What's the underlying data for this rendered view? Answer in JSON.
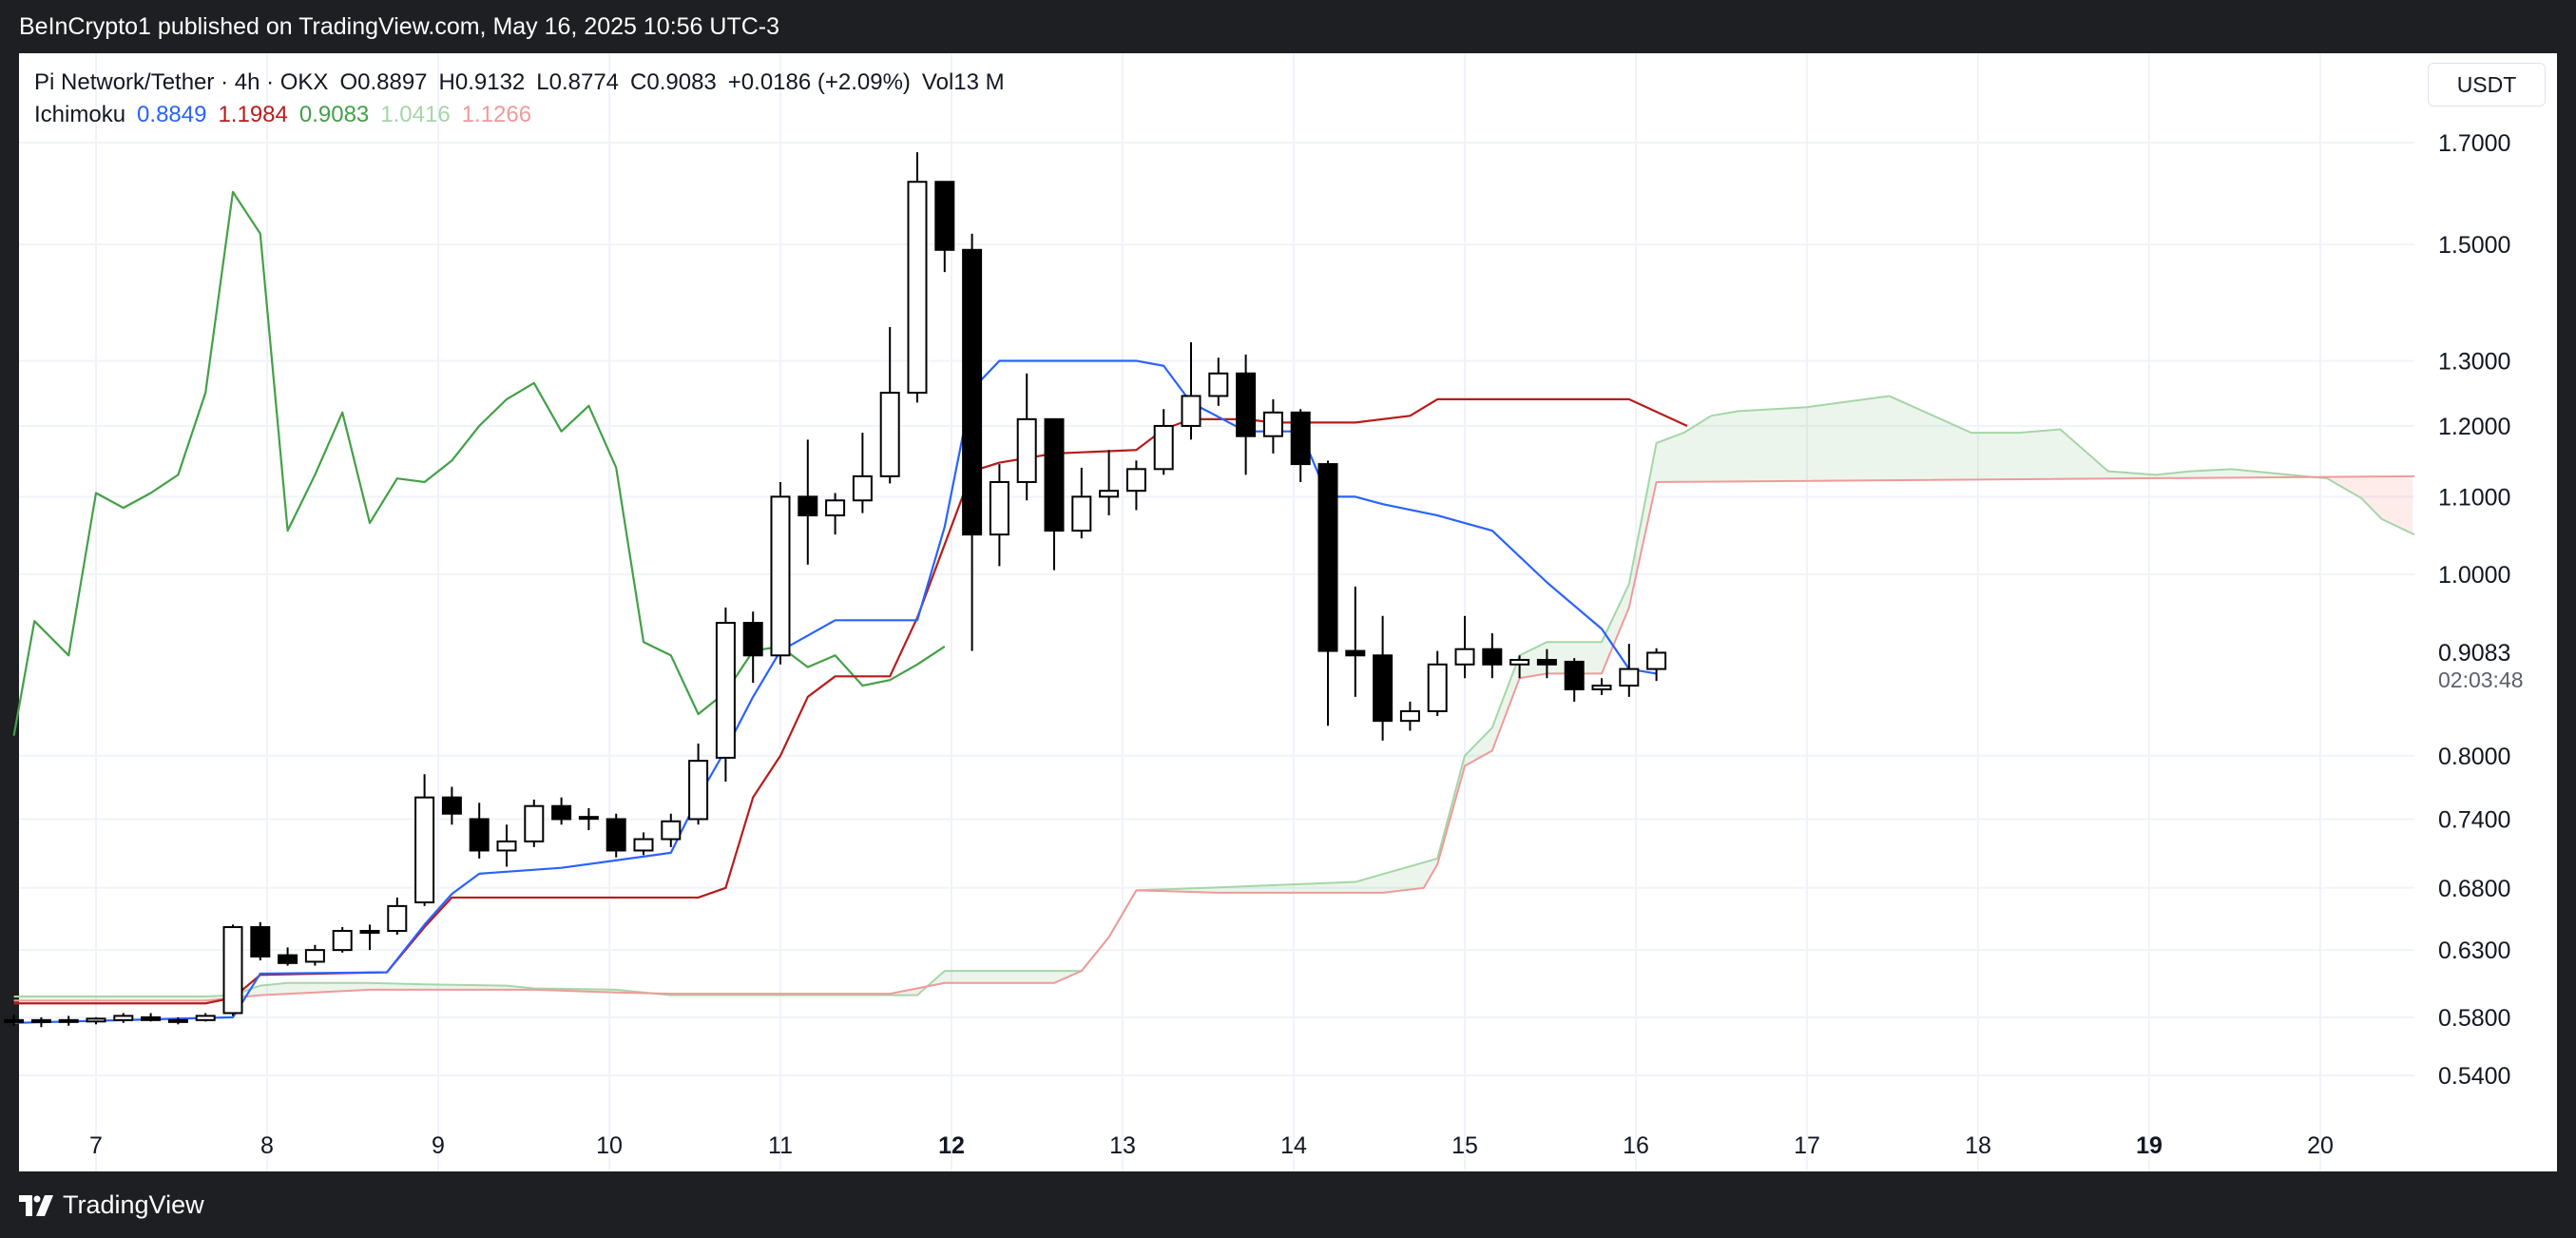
{
  "header": {
    "published": "BeInCrypto1 published on TradingView.com, May 16, 2025 10:56 UTC-3"
  },
  "legend": {
    "symbol": "Pi Network/Tether · 4h · OKX",
    "o_label": "O",
    "o": "0.8897",
    "h_label": "H",
    "h": "0.9132",
    "l_label": "L",
    "l": "0.8774",
    "c_label": "C",
    "c": "0.9083",
    "change": "+0.0186 (+2.09%)",
    "vol_label": "Vol",
    "vol": "13 M",
    "indicator": "Ichimoku",
    "ich_values": [
      "0.8849",
      "1.1984",
      "0.9083",
      "1.0416",
      "1.1266"
    ]
  },
  "currency": "USDT",
  "footer": {
    "brand": "TradingView"
  },
  "colors": {
    "conversion": "#2962ff",
    "base": "#b71c1c",
    "lagging": "#43a047",
    "span_a": "#a5d6a7",
    "span_b": "#ef9a9a",
    "cloud_bull": "rgba(67,160,71,0.10)",
    "cloud_bear": "rgba(244,67,54,0.10)",
    "candle_up": "#ffffff",
    "candle_down": "#000000"
  },
  "chart_data": {
    "type": "candlestick",
    "y_scale": "log",
    "ylim": [
      0.5,
      1.8
    ],
    "y_ticks": [
      "1.7000",
      "1.5000",
      "1.3000",
      "1.2000",
      "1.1000",
      "1.0000",
      "0.8000",
      "0.7400",
      "0.6800",
      "0.6300",
      "0.5800",
      "0.5400"
    ],
    "last_price": "0.9083",
    "countdown": "02:03:48",
    "x_start": 6.55,
    "x_end": 20.55,
    "x_ticks": [
      {
        "v": 7,
        "label": "7",
        "bold": false
      },
      {
        "v": 8,
        "label": "8",
        "bold": false
      },
      {
        "v": 9,
        "label": "9",
        "bold": false
      },
      {
        "v": 10,
        "label": "10",
        "bold": false
      },
      {
        "v": 11,
        "label": "11",
        "bold": false
      },
      {
        "v": 12,
        "label": "12",
        "bold": true
      },
      {
        "v": 13,
        "label": "13",
        "bold": false
      },
      {
        "v": 14,
        "label": "14",
        "bold": false
      },
      {
        "v": 15,
        "label": "15",
        "bold": false
      },
      {
        "v": 16,
        "label": "16",
        "bold": false
      },
      {
        "v": 17,
        "label": "17",
        "bold": false
      },
      {
        "v": 18,
        "label": "18",
        "bold": false
      },
      {
        "v": 19,
        "label": "19",
        "bold": true
      },
      {
        "v": 20,
        "label": "20",
        "bold": false
      }
    ],
    "candles": [
      {
        "t": 6.52,
        "o": 0.578,
        "h": 0.582,
        "l": 0.574,
        "c": 0.577
      },
      {
        "t": 6.68,
        "o": 0.577,
        "h": 0.58,
        "l": 0.573,
        "c": 0.578
      },
      {
        "t": 6.84,
        "o": 0.578,
        "h": 0.581,
        "l": 0.574,
        "c": 0.577
      },
      {
        "t": 7.0,
        "o": 0.577,
        "h": 0.58,
        "l": 0.575,
        "c": 0.579
      },
      {
        "t": 7.16,
        "o": 0.578,
        "h": 0.583,
        "l": 0.576,
        "c": 0.581
      },
      {
        "t": 7.32,
        "o": 0.58,
        "h": 0.583,
        "l": 0.577,
        "c": 0.578
      },
      {
        "t": 7.48,
        "o": 0.578,
        "h": 0.58,
        "l": 0.575,
        "c": 0.577
      },
      {
        "t": 7.64,
        "o": 0.578,
        "h": 0.583,
        "l": 0.577,
        "c": 0.581
      },
      {
        "t": 7.8,
        "o": 0.583,
        "h": 0.65,
        "l": 0.581,
        "c": 0.648
      },
      {
        "t": 7.96,
        "o": 0.648,
        "h": 0.652,
        "l": 0.622,
        "c": 0.625
      },
      {
        "t": 8.12,
        "o": 0.626,
        "h": 0.632,
        "l": 0.618,
        "c": 0.62
      },
      {
        "t": 8.28,
        "o": 0.621,
        "h": 0.634,
        "l": 0.618,
        "c": 0.63
      },
      {
        "t": 8.44,
        "o": 0.63,
        "h": 0.648,
        "l": 0.628,
        "c": 0.645
      },
      {
        "t": 8.6,
        "o": 0.645,
        "h": 0.65,
        "l": 0.63,
        "c": 0.645
      },
      {
        "t": 8.76,
        "o": 0.645,
        "h": 0.672,
        "l": 0.642,
        "c": 0.665
      },
      {
        "t": 8.92,
        "o": 0.668,
        "h": 0.782,
        "l": 0.665,
        "c": 0.76
      },
      {
        "t": 9.08,
        "o": 0.76,
        "h": 0.77,
        "l": 0.735,
        "c": 0.745
      },
      {
        "t": 9.24,
        "o": 0.74,
        "h": 0.755,
        "l": 0.705,
        "c": 0.712
      },
      {
        "t": 9.4,
        "o": 0.712,
        "h": 0.735,
        "l": 0.698,
        "c": 0.72
      },
      {
        "t": 9.56,
        "o": 0.72,
        "h": 0.758,
        "l": 0.715,
        "c": 0.752
      },
      {
        "t": 9.72,
        "o": 0.752,
        "h": 0.76,
        "l": 0.735,
        "c": 0.74
      },
      {
        "t": 9.88,
        "o": 0.742,
        "h": 0.75,
        "l": 0.73,
        "c": 0.742
      },
      {
        "t": 10.04,
        "o": 0.74,
        "h": 0.745,
        "l": 0.706,
        "c": 0.712
      },
      {
        "t": 10.2,
        "o": 0.712,
        "h": 0.728,
        "l": 0.708,
        "c": 0.722
      },
      {
        "t": 10.36,
        "o": 0.722,
        "h": 0.745,
        "l": 0.715,
        "c": 0.738
      },
      {
        "t": 10.52,
        "o": 0.74,
        "h": 0.812,
        "l": 0.735,
        "c": 0.795
      },
      {
        "t": 10.68,
        "o": 0.798,
        "h": 0.96,
        "l": 0.775,
        "c": 0.942
      },
      {
        "t": 10.84,
        "o": 0.942,
        "h": 0.955,
        "l": 0.875,
        "c": 0.905
      },
      {
        "t": 11.0,
        "o": 0.905,
        "h": 1.12,
        "l": 0.895,
        "c": 1.1
      },
      {
        "t": 11.16,
        "o": 1.1,
        "h": 1.18,
        "l": 1.012,
        "c": 1.075
      },
      {
        "t": 11.32,
        "o": 1.075,
        "h": 1.105,
        "l": 1.05,
        "c": 1.095
      },
      {
        "t": 11.48,
        "o": 1.095,
        "h": 1.19,
        "l": 1.078,
        "c": 1.128
      },
      {
        "t": 11.64,
        "o": 1.128,
        "h": 1.355,
        "l": 1.118,
        "c": 1.25
      },
      {
        "t": 11.8,
        "o": 1.25,
        "h": 1.68,
        "l": 1.235,
        "c": 1.62
      },
      {
        "t": 11.96,
        "o": 1.62,
        "h": 1.62,
        "l": 1.45,
        "c": 1.49
      },
      {
        "t": 12.12,
        "o": 1.49,
        "h": 1.52,
        "l": 0.91,
        "c": 1.05
      },
      {
        "t": 12.28,
        "o": 1.05,
        "h": 1.145,
        "l": 1.01,
        "c": 1.12
      },
      {
        "t": 12.44,
        "o": 1.12,
        "h": 1.28,
        "l": 1.095,
        "c": 1.21
      },
      {
        "t": 12.6,
        "o": 1.21,
        "h": 1.21,
        "l": 1.005,
        "c": 1.055
      },
      {
        "t": 12.76,
        "o": 1.055,
        "h": 1.14,
        "l": 1.045,
        "c": 1.1
      },
      {
        "t": 12.92,
        "o": 1.1,
        "h": 1.165,
        "l": 1.075,
        "c": 1.108
      },
      {
        "t": 13.08,
        "o": 1.108,
        "h": 1.15,
        "l": 1.082,
        "c": 1.138
      },
      {
        "t": 13.24,
        "o": 1.138,
        "h": 1.225,
        "l": 1.13,
        "c": 1.2
      },
      {
        "t": 13.4,
        "o": 1.2,
        "h": 1.33,
        "l": 1.18,
        "c": 1.245
      },
      {
        "t": 13.56,
        "o": 1.245,
        "h": 1.305,
        "l": 1.23,
        "c": 1.28
      },
      {
        "t": 13.72,
        "o": 1.28,
        "h": 1.31,
        "l": 1.13,
        "c": 1.185
      },
      {
        "t": 13.88,
        "o": 1.185,
        "h": 1.24,
        "l": 1.16,
        "c": 1.22
      },
      {
        "t": 14.04,
        "o": 1.22,
        "h": 1.225,
        "l": 1.12,
        "c": 1.145
      },
      {
        "t": 14.2,
        "o": 1.145,
        "h": 1.15,
        "l": 0.83,
        "c": 0.91
      },
      {
        "t": 14.36,
        "o": 0.91,
        "h": 0.985,
        "l": 0.86,
        "c": 0.905
      },
      {
        "t": 14.52,
        "o": 0.905,
        "h": 0.95,
        "l": 0.815,
        "c": 0.835
      },
      {
        "t": 14.68,
        "o": 0.835,
        "h": 0.855,
        "l": 0.825,
        "c": 0.845
      },
      {
        "t": 14.84,
        "o": 0.845,
        "h": 0.91,
        "l": 0.84,
        "c": 0.895
      },
      {
        "t": 15.0,
        "o": 0.895,
        "h": 0.95,
        "l": 0.88,
        "c": 0.912
      },
      {
        "t": 15.16,
        "o": 0.912,
        "h": 0.93,
        "l": 0.88,
        "c": 0.895
      },
      {
        "t": 15.32,
        "o": 0.895,
        "h": 0.905,
        "l": 0.88,
        "c": 0.9
      },
      {
        "t": 15.48,
        "o": 0.9,
        "h": 0.912,
        "l": 0.88,
        "c": 0.895
      },
      {
        "t": 15.64,
        "o": 0.898,
        "h": 0.902,
        "l": 0.855,
        "c": 0.868
      },
      {
        "t": 15.8,
        "o": 0.868,
        "h": 0.88,
        "l": 0.862,
        "c": 0.872
      },
      {
        "t": 15.96,
        "o": 0.872,
        "h": 0.918,
        "l": 0.86,
        "c": 0.89
      },
      {
        "t": 16.12,
        "o": 0.89,
        "h": 0.913,
        "l": 0.877,
        "c": 0.908
      }
    ],
    "conversion_line": [
      [
        6.52,
        0.576
      ],
      [
        7.8,
        0.58
      ],
      [
        7.96,
        0.612
      ],
      [
        8.7,
        0.613
      ],
      [
        8.92,
        0.65
      ],
      [
        9.08,
        0.675
      ],
      [
        9.24,
        0.692
      ],
      [
        9.72,
        0.697
      ],
      [
        10.36,
        0.71
      ],
      [
        10.52,
        0.76
      ],
      [
        10.68,
        0.806
      ],
      [
        10.84,
        0.86
      ],
      [
        11.0,
        0.91
      ],
      [
        11.32,
        0.945
      ],
      [
        11.8,
        0.945
      ],
      [
        11.96,
        1.06
      ],
      [
        12.12,
        1.255
      ],
      [
        12.28,
        1.3
      ],
      [
        13.08,
        1.3
      ],
      [
        13.24,
        1.292
      ],
      [
        13.4,
        1.235
      ],
      [
        13.72,
        1.192
      ],
      [
        14.04,
        1.192
      ],
      [
        14.2,
        1.1
      ],
      [
        14.36,
        1.1
      ],
      [
        14.52,
        1.09
      ],
      [
        14.84,
        1.075
      ],
      [
        15.16,
        1.055
      ],
      [
        15.48,
        0.99
      ],
      [
        15.8,
        0.935
      ],
      [
        15.96,
        0.89
      ],
      [
        16.12,
        0.885
      ]
    ],
    "base_line": [
      [
        6.52,
        0.59
      ],
      [
        7.64,
        0.59
      ],
      [
        7.8,
        0.594
      ],
      [
        7.96,
        0.611
      ],
      [
        8.7,
        0.613
      ],
      [
        8.92,
        0.648
      ],
      [
        9.08,
        0.672
      ],
      [
        10.52,
        0.672
      ],
      [
        10.68,
        0.68
      ],
      [
        10.84,
        0.76
      ],
      [
        11.0,
        0.8
      ],
      [
        11.16,
        0.86
      ],
      [
        11.32,
        0.882
      ],
      [
        11.64,
        0.882
      ],
      [
        11.8,
        0.948
      ],
      [
        12.12,
        1.135
      ],
      [
        12.28,
        1.147
      ],
      [
        12.6,
        1.16
      ],
      [
        13.08,
        1.165
      ],
      [
        13.24,
        1.195
      ],
      [
        13.4,
        1.21
      ],
      [
        13.72,
        1.21
      ],
      [
        13.88,
        1.205
      ],
      [
        14.36,
        1.205
      ],
      [
        14.68,
        1.215
      ],
      [
        14.84,
        1.24
      ],
      [
        15.96,
        1.24
      ],
      [
        16.3,
        1.2
      ]
    ],
    "lagging_span": [
      [
        6.52,
        0.82
      ],
      [
        6.64,
        0.944
      ],
      [
        6.84,
        0.905
      ],
      [
        7.0,
        1.105
      ],
      [
        7.16,
        1.085
      ],
      [
        7.32,
        1.105
      ],
      [
        7.48,
        1.13
      ],
      [
        7.64,
        1.25
      ],
      [
        7.8,
        1.6
      ],
      [
        7.96,
        1.52
      ],
      [
        8.12,
        1.055
      ],
      [
        8.28,
        1.13
      ],
      [
        8.44,
        1.22
      ],
      [
        8.6,
        1.065
      ],
      [
        8.76,
        1.125
      ],
      [
        8.92,
        1.12
      ],
      [
        9.08,
        1.15
      ],
      [
        9.24,
        1.2
      ],
      [
        9.4,
        1.24
      ],
      [
        9.56,
        1.265
      ],
      [
        9.72,
        1.192
      ],
      [
        9.88,
        1.23
      ],
      [
        10.04,
        1.14
      ],
      [
        10.2,
        0.92
      ],
      [
        10.36,
        0.905
      ],
      [
        10.52,
        0.842
      ],
      [
        10.68,
        0.865
      ],
      [
        10.84,
        0.91
      ],
      [
        11.0,
        0.915
      ],
      [
        11.16,
        0.892
      ],
      [
        11.32,
        0.905
      ],
      [
        11.48,
        0.872
      ],
      [
        11.64,
        0.878
      ],
      [
        11.8,
        0.895
      ],
      [
        11.96,
        0.915
      ]
    ],
    "span_a": [
      [
        6.52,
        0.595
      ],
      [
        7.64,
        0.595
      ],
      [
        7.8,
        0.596
      ],
      [
        7.96,
        0.603
      ],
      [
        8.12,
        0.605
      ],
      [
        8.6,
        0.605
      ],
      [
        8.92,
        0.604
      ],
      [
        9.4,
        0.603
      ],
      [
        9.56,
        0.601
      ],
      [
        10.04,
        0.6
      ],
      [
        10.36,
        0.596
      ],
      [
        11.8,
        0.596
      ],
      [
        11.96,
        0.614
      ],
      [
        12.76,
        0.614
      ],
      [
        12.92,
        0.64
      ],
      [
        13.08,
        0.678
      ],
      [
        13.48,
        0.68
      ],
      [
        14.36,
        0.685
      ],
      [
        14.84,
        0.705
      ],
      [
        15.0,
        0.8
      ],
      [
        15.16,
        0.828
      ],
      [
        15.32,
        0.905
      ],
      [
        15.48,
        0.92
      ],
      [
        15.8,
        0.92
      ],
      [
        15.96,
        0.988
      ],
      [
        16.12,
        1.175
      ],
      [
        16.28,
        1.19
      ],
      [
        16.44,
        1.215
      ],
      [
        16.6,
        1.222
      ],
      [
        17.0,
        1.228
      ],
      [
        17.48,
        1.245
      ],
      [
        17.96,
        1.19
      ],
      [
        18.24,
        1.19
      ],
      [
        18.48,
        1.195
      ],
      [
        18.76,
        1.135
      ],
      [
        19.04,
        1.13
      ],
      [
        19.24,
        1.135
      ],
      [
        19.48,
        1.138
      ],
      [
        20.04,
        1.125
      ],
      [
        20.24,
        1.098
      ],
      [
        20.36,
        1.07
      ],
      [
        20.55,
        1.05
      ]
    ],
    "span_b": [
      [
        6.52,
        0.592
      ],
      [
        7.64,
        0.592
      ],
      [
        7.96,
        0.596
      ],
      [
        8.6,
        0.6
      ],
      [
        9.56,
        0.6
      ],
      [
        10.04,
        0.598
      ],
      [
        10.36,
        0.597
      ],
      [
        11.64,
        0.597
      ],
      [
        11.96,
        0.605
      ],
      [
        12.6,
        0.605
      ],
      [
        12.76,
        0.614
      ],
      [
        12.92,
        0.64
      ],
      [
        13.08,
        0.678
      ],
      [
        13.56,
        0.676
      ],
      [
        14.0,
        0.676
      ],
      [
        14.36,
        0.676
      ],
      [
        14.52,
        0.676
      ],
      [
        14.76,
        0.68
      ],
      [
        14.84,
        0.7
      ],
      [
        15.0,
        0.79
      ],
      [
        15.16,
        0.805
      ],
      [
        15.32,
        0.88
      ],
      [
        15.48,
        0.885
      ],
      [
        15.8,
        0.885
      ],
      [
        15.96,
        0.96
      ],
      [
        16.12,
        1.12
      ],
      [
        20.55,
        1.128
      ]
    ]
  }
}
